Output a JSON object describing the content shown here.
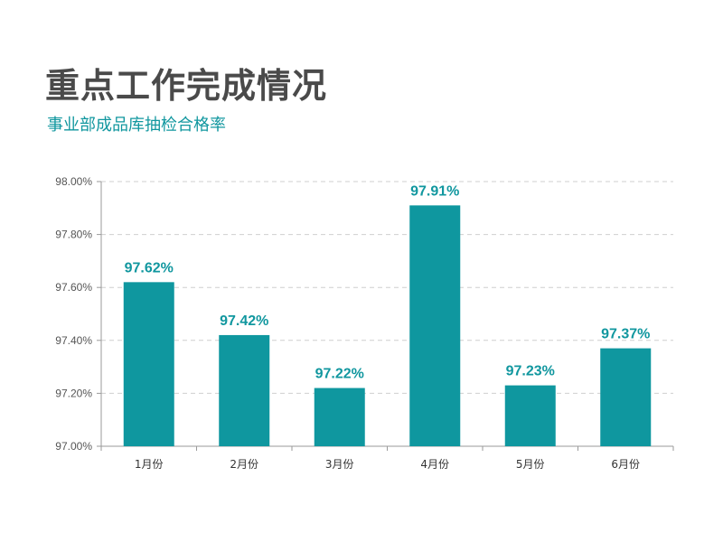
{
  "header": {
    "title": "重点工作完成情况",
    "subtitle": "事业部成品库抽检合格率"
  },
  "colors": {
    "accent": "#11979f",
    "bar": "#0f979f",
    "title": "#4a4a4a",
    "grid": "#cfcfcf",
    "axis": "#9a9a9a"
  },
  "chart_data": {
    "type": "bar",
    "categories": [
      "1月份",
      "2月份",
      "3月份",
      "4月份",
      "5月份",
      "6月份"
    ],
    "values": [
      97.62,
      97.42,
      97.22,
      97.91,
      97.23,
      97.37
    ],
    "data_labels": [
      "97.62%",
      "97.42%",
      "97.22%",
      "97.91%",
      "97.23%",
      "97.37%"
    ],
    "y_ticks": [
      97.0,
      97.2,
      97.4,
      97.6,
      97.8,
      98.0
    ],
    "y_tick_labels": [
      "97.00%",
      "97.20%",
      "97.40%",
      "97.60%",
      "97.80%",
      "98.00%"
    ],
    "ylim": [
      97.0,
      98.0
    ],
    "grid": true,
    "legend": "none"
  }
}
